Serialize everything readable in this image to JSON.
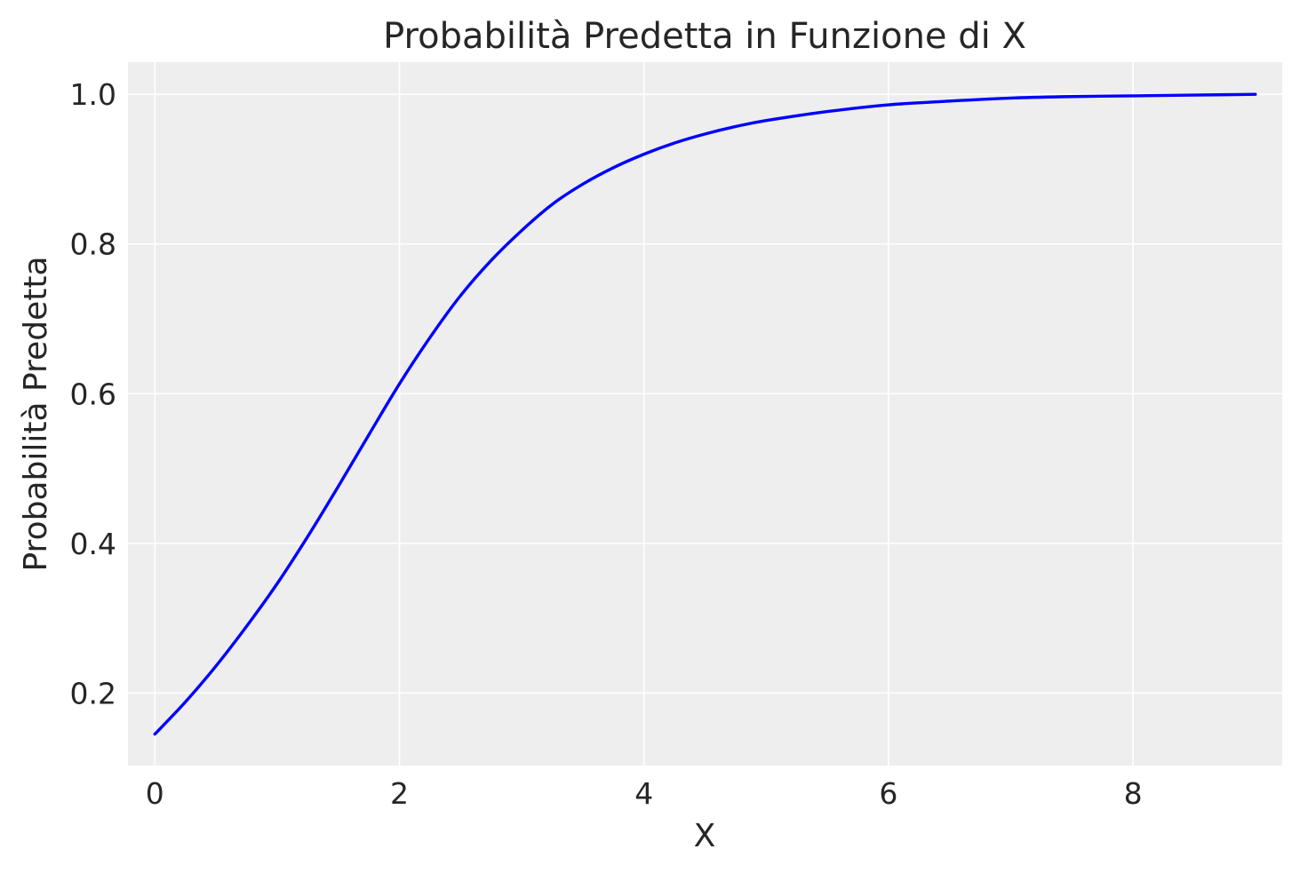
{
  "chart_data": {
    "type": "line",
    "title": "Probabilità Predetta in Funzione di X",
    "xlabel": "X",
    "ylabel": "Probabilità Predetta",
    "xlim": [
      -0.22,
      9.22
    ],
    "ylim": [
      0.103,
      1.043
    ],
    "xticks": [
      0,
      2,
      4,
      6,
      8
    ],
    "xtick_labels": [
      "0",
      "2",
      "4",
      "6",
      "8"
    ],
    "yticks": [
      0.2,
      0.4,
      0.6,
      0.8,
      1.0
    ],
    "ytick_labels": [
      "0.2",
      "0.4",
      "0.6",
      "0.8",
      "1.0"
    ],
    "grid": true,
    "legend": "none",
    "series": [
      {
        "color": "#0000ff",
        "x": [
          0,
          0.25,
          0.5,
          0.75,
          1.0,
          1.25,
          1.5,
          1.75,
          2.0,
          2.25,
          2.5,
          2.75,
          3.0,
          3.25,
          3.5,
          3.75,
          4.0,
          4.25,
          4.5,
          4.75,
          5.0,
          5.5,
          6.0,
          6.5,
          7.0,
          7.5,
          8.0,
          8.5,
          9.0
        ],
        "y": [
          0.145,
          0.188,
          0.236,
          0.289,
          0.346,
          0.409,
          0.476,
          0.545,
          0.613,
          0.675,
          0.731,
          0.778,
          0.818,
          0.853,
          0.88,
          0.902,
          0.92,
          0.935,
          0.947,
          0.957,
          0.965,
          0.977,
          0.986,
          0.991,
          0.995,
          0.997,
          0.998,
          0.999,
          1.0
        ]
      }
    ]
  }
}
